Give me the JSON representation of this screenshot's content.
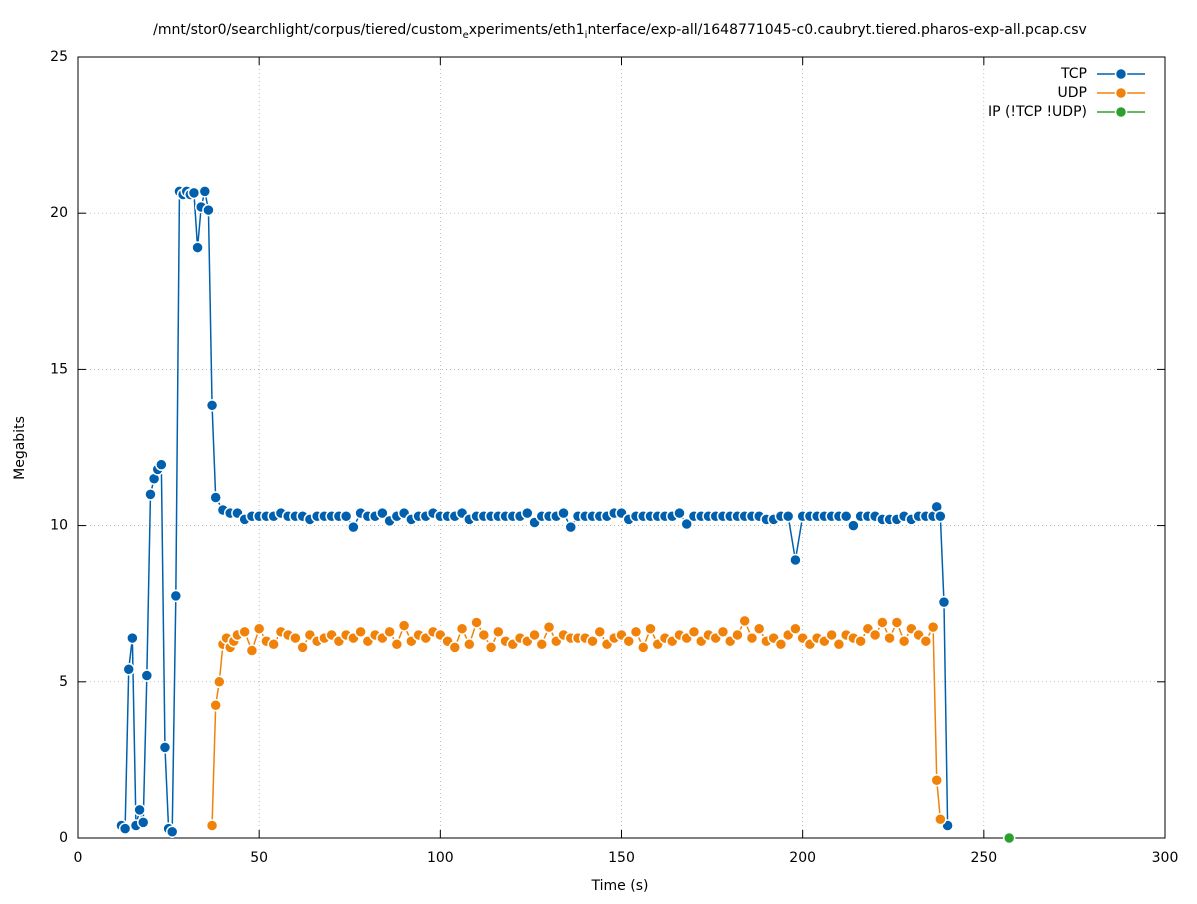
{
  "chart_data": {
    "type": "line",
    "title": "/mnt/stor0/searchlight/corpus/tiered/custom_experiments/eth1_interface/exp-all/1648771045-c0.caubryt.tiered.pharos-exp-all.pcap.csv",
    "x_label": "Time (s)",
    "y_label": "Megabits",
    "xlim": [
      0,
      300
    ],
    "xticks": [
      0,
      50,
      100,
      150,
      200,
      250,
      300
    ],
    "ylim": [
      0,
      25
    ],
    "yticks": [
      0,
      5,
      10,
      15,
      20,
      25
    ],
    "grid": true,
    "legend": "top-right",
    "series": [
      {
        "name": "TCP",
        "color": "#0060ad",
        "x": [
          12,
          13,
          14,
          15,
          16,
          17,
          18,
          19,
          20,
          21,
          22,
          23,
          24,
          25,
          26,
          27,
          28,
          29,
          30,
          31,
          32,
          33,
          34,
          35,
          36,
          37,
          38,
          40,
          42,
          44,
          46,
          48,
          50,
          52,
          54,
          56,
          58,
          60,
          62,
          64,
          66,
          68,
          70,
          72,
          74,
          76,
          78,
          80,
          82,
          84,
          86,
          88,
          90,
          92,
          94,
          96,
          98,
          100,
          102,
          104,
          106,
          108,
          110,
          112,
          114,
          116,
          118,
          120,
          122,
          124,
          126,
          128,
          130,
          132,
          134,
          136,
          138,
          140,
          142,
          144,
          146,
          148,
          150,
          152,
          154,
          156,
          158,
          160,
          162,
          164,
          166,
          168,
          170,
          172,
          174,
          176,
          178,
          180,
          182,
          184,
          186,
          188,
          190,
          192,
          194,
          196,
          198,
          200,
          202,
          204,
          206,
          208,
          210,
          212,
          214,
          216,
          218,
          220,
          222,
          224,
          226,
          228,
          230,
          232,
          234,
          236,
          237,
          238,
          239,
          240
        ],
        "values": [
          0.4,
          0.3,
          5.4,
          6.4,
          0.4,
          0.9,
          0.5,
          5.2,
          11.0,
          11.5,
          11.8,
          11.95,
          2.9,
          0.3,
          0.2,
          7.75,
          20.7,
          20.6,
          20.7,
          20.6,
          20.65,
          18.9,
          20.2,
          20.7,
          20.1,
          13.85,
          10.9,
          10.5,
          10.4,
          10.4,
          10.2,
          10.3,
          10.3,
          10.3,
          10.3,
          10.4,
          10.3,
          10.3,
          10.3,
          10.2,
          10.3,
          10.3,
          10.3,
          10.3,
          10.3,
          9.95,
          10.4,
          10.3,
          10.3,
          10.4,
          10.15,
          10.3,
          10.4,
          10.2,
          10.3,
          10.3,
          10.4,
          10.3,
          10.3,
          10.3,
          10.4,
          10.2,
          10.3,
          10.3,
          10.3,
          10.3,
          10.3,
          10.3,
          10.3,
          10.4,
          10.1,
          10.3,
          10.3,
          10.3,
          10.4,
          9.95,
          10.3,
          10.3,
          10.3,
          10.3,
          10.3,
          10.4,
          10.4,
          10.2,
          10.3,
          10.3,
          10.3,
          10.3,
          10.3,
          10.3,
          10.4,
          10.05,
          10.3,
          10.3,
          10.3,
          10.3,
          10.3,
          10.3,
          10.3,
          10.3,
          10.3,
          10.3,
          10.2,
          10.2,
          10.3,
          10.3,
          8.9,
          10.3,
          10.3,
          10.3,
          10.3,
          10.3,
          10.3,
          10.3,
          10.0,
          10.3,
          10.3,
          10.3,
          10.2,
          10.2,
          10.2,
          10.3,
          10.2,
          10.3,
          10.3,
          10.3,
          10.6,
          10.3,
          7.55,
          0.4
        ]
      },
      {
        "name": "UDP",
        "color": "#f0820a",
        "x": [
          37,
          38,
          39,
          40,
          41,
          42,
          43,
          44,
          46,
          48,
          50,
          52,
          54,
          56,
          58,
          60,
          62,
          64,
          66,
          68,
          70,
          72,
          74,
          76,
          78,
          80,
          82,
          84,
          86,
          88,
          90,
          92,
          94,
          96,
          98,
          100,
          102,
          104,
          106,
          108,
          110,
          112,
          114,
          116,
          118,
          120,
          122,
          124,
          126,
          128,
          130,
          132,
          134,
          136,
          138,
          140,
          142,
          144,
          146,
          148,
          150,
          152,
          154,
          156,
          158,
          160,
          162,
          164,
          166,
          168,
          170,
          172,
          174,
          176,
          178,
          180,
          182,
          184,
          186,
          188,
          190,
          192,
          194,
          196,
          198,
          200,
          202,
          204,
          206,
          208,
          210,
          212,
          214,
          216,
          218,
          220,
          222,
          224,
          226,
          228,
          230,
          232,
          234,
          236,
          237,
          238
        ],
        "values": [
          0.4,
          4.25,
          5.0,
          6.2,
          6.4,
          6.1,
          6.3,
          6.5,
          6.6,
          6.0,
          6.7,
          6.3,
          6.2,
          6.6,
          6.5,
          6.4,
          6.1,
          6.5,
          6.3,
          6.4,
          6.5,
          6.3,
          6.5,
          6.4,
          6.6,
          6.3,
          6.5,
          6.4,
          6.6,
          6.2,
          6.8,
          6.3,
          6.5,
          6.4,
          6.6,
          6.5,
          6.3,
          6.1,
          6.7,
          6.2,
          6.9,
          6.5,
          6.1,
          6.6,
          6.3,
          6.2,
          6.4,
          6.3,
          6.5,
          6.2,
          6.75,
          6.3,
          6.5,
          6.4,
          6.4,
          6.4,
          6.3,
          6.6,
          6.2,
          6.4,
          6.5,
          6.3,
          6.6,
          6.1,
          6.7,
          6.2,
          6.4,
          6.3,
          6.5,
          6.4,
          6.6,
          6.3,
          6.5,
          6.4,
          6.6,
          6.3,
          6.5,
          6.95,
          6.4,
          6.7,
          6.3,
          6.4,
          6.2,
          6.5,
          6.7,
          6.4,
          6.2,
          6.4,
          6.3,
          6.5,
          6.2,
          6.5,
          6.4,
          6.3,
          6.7,
          6.5,
          6.9,
          6.4,
          6.9,
          6.3,
          6.7,
          6.5,
          6.3,
          6.75,
          1.85,
          0.6
        ]
      },
      {
        "name": "IP (!TCP  !UDP)",
        "color": "#2ca02c",
        "x": [
          257
        ],
        "values": [
          0
        ]
      }
    ]
  }
}
